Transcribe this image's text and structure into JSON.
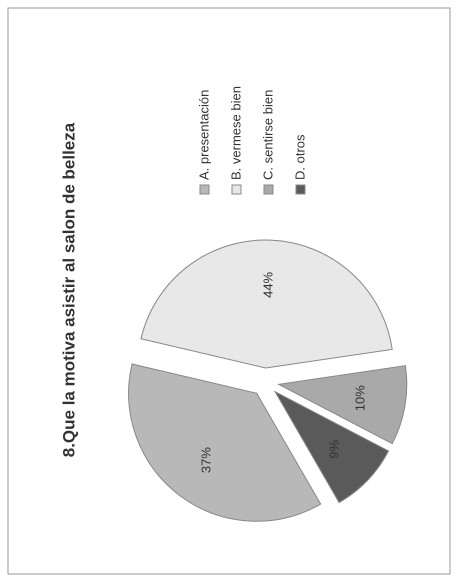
{
  "chart_data": {
    "type": "pie",
    "title": "8.Que la motiva asistir al salon de belleza",
    "categories": [
      "A. presentación",
      "B. vermese bien",
      "C. sentirse bien",
      "D. otros"
    ],
    "values": [
      37,
      44,
      10,
      9
    ],
    "value_labels": [
      "37%",
      "44%",
      "10%",
      "9%"
    ],
    "colors": [
      "#b8b8b8",
      "#e8e8e8",
      "#a9a9a9",
      "#5a5a5a"
    ],
    "legend": "right"
  }
}
